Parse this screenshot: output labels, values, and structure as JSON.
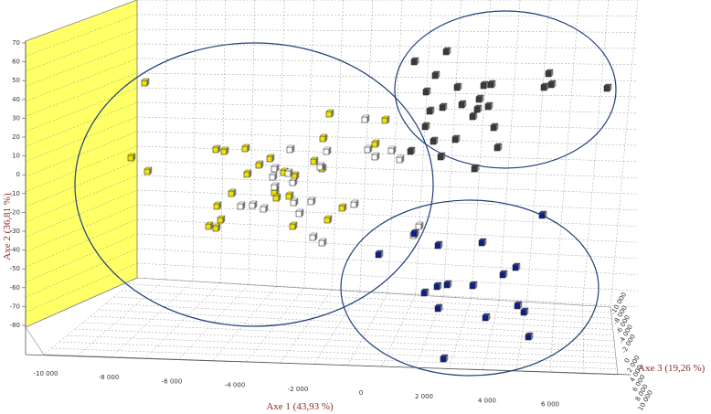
{
  "chart_data": {
    "type": "scatter-3d",
    "xlabel": "Axe 1 (43,93 %)",
    "ylabel": "Axe 2 (36,81 %)",
    "zlabel": "Axe 3 (19,26 %)",
    "x_ticks": [
      "-10 000",
      "-8 000",
      "-6 000",
      "-4 000",
      "-2 000",
      "0",
      "2 000",
      "4 000",
      "6 000"
    ],
    "y_ticks": [
      "70",
      "60",
      "50",
      "40",
      "30",
      "20",
      "10",
      "0",
      "-10",
      "-20",
      "-30",
      "-40",
      "-50",
      "-60",
      "-70",
      "-80"
    ],
    "z_ticks": [
      "-10 000",
      "-8 000",
      "-6 000",
      "-4 000",
      "-2 000",
      "0",
      "2 000",
      "4 000",
      "6 000",
      "8 000",
      "10 000"
    ],
    "grid": true,
    "colors": {
      "yellow": "#f2e200",
      "white": "#ffffff",
      "black": "#3a3a3a",
      "blue": "#0b1e8a",
      "wall": "#ffff66",
      "ellipse": "#1f3f7a",
      "axis_label": "#8b2a2a"
    },
    "groups": [
      {
        "color": "yellow",
        "points": [
          [
            158,
            91
          ],
          [
            143,
            173
          ],
          [
            161,
            188
          ],
          [
            236,
            164
          ],
          [
            245,
            166
          ],
          [
            268,
            163
          ],
          [
            283,
            181
          ],
          [
            295,
            174
          ],
          [
            270,
            191
          ],
          [
            310,
            189
          ],
          [
            322,
            193
          ],
          [
            343,
            177
          ],
          [
            352,
            185
          ],
          [
            353,
            152
          ],
          [
            360,
            125
          ],
          [
            421,
            132
          ],
          [
            410,
            158
          ],
          [
            300,
            211
          ],
          [
            253,
            212
          ],
          [
            237,
            226
          ],
          [
            241,
            241
          ],
          [
            228,
            248
          ],
          [
            236,
            250
          ],
          [
            302,
            217
          ],
          [
            316,
            215
          ],
          [
            320,
            248
          ],
          [
            358,
            241
          ],
          [
            374,
            228
          ]
        ]
      },
      {
        "color": "white",
        "points": [
          [
            317,
            164
          ],
          [
            300,
            185
          ],
          [
            315,
            190
          ],
          [
            298,
            194
          ],
          [
            320,
            200
          ],
          [
            350,
            183
          ],
          [
            357,
            166
          ],
          [
            399,
            131
          ],
          [
            402,
            164
          ],
          [
            428,
            165
          ],
          [
            437,
            175
          ],
          [
            263,
            226
          ],
          [
            276,
            225
          ],
          [
            288,
            229
          ],
          [
            300,
            205
          ],
          [
            321,
            222
          ],
          [
            340,
            221
          ],
          [
            327,
            234
          ],
          [
            342,
            260
          ],
          [
            352,
            266
          ],
          [
            387,
            224
          ],
          [
            410,
            172
          ],
          [
            452,
            258
          ],
          [
            458,
            248
          ]
        ]
      },
      {
        "color": "black",
        "points": [
          [
            453,
            68
          ],
          [
            488,
            57
          ],
          [
            476,
            83
          ],
          [
            500,
            96
          ],
          [
            529,
            94
          ],
          [
            537,
            93
          ],
          [
            600,
            81
          ],
          [
            595,
            96
          ],
          [
            603,
            93
          ],
          [
            664,
            97
          ],
          [
            466,
            101
          ],
          [
            470,
            122
          ],
          [
            484,
            118
          ],
          [
            505,
            115
          ],
          [
            522,
            120
          ],
          [
            524,
            109
          ],
          [
            534,
            117
          ],
          [
            517,
            128
          ],
          [
            540,
            140
          ],
          [
            544,
            162
          ],
          [
            498,
            153
          ],
          [
            465,
            139
          ],
          [
            474,
            155
          ],
          [
            449,
            166
          ],
          [
            482,
            172
          ],
          [
            519,
            185
          ]
        ]
      },
      {
        "color": "blue",
        "points": [
          [
            593,
            236
          ],
          [
            414,
            279
          ],
          [
            479,
            269
          ],
          [
            527,
            266
          ],
          [
            453,
            256
          ],
          [
            564,
            293
          ],
          [
            550,
            301
          ],
          [
            517,
            313
          ],
          [
            489,
            312
          ],
          [
            478,
            314
          ],
          [
            464,
            321
          ],
          [
            479,
            338
          ],
          [
            531,
            348
          ],
          [
            566,
            335
          ],
          [
            573,
            342
          ],
          [
            578,
            369
          ],
          [
            485,
            393
          ]
        ]
      }
    ]
  }
}
